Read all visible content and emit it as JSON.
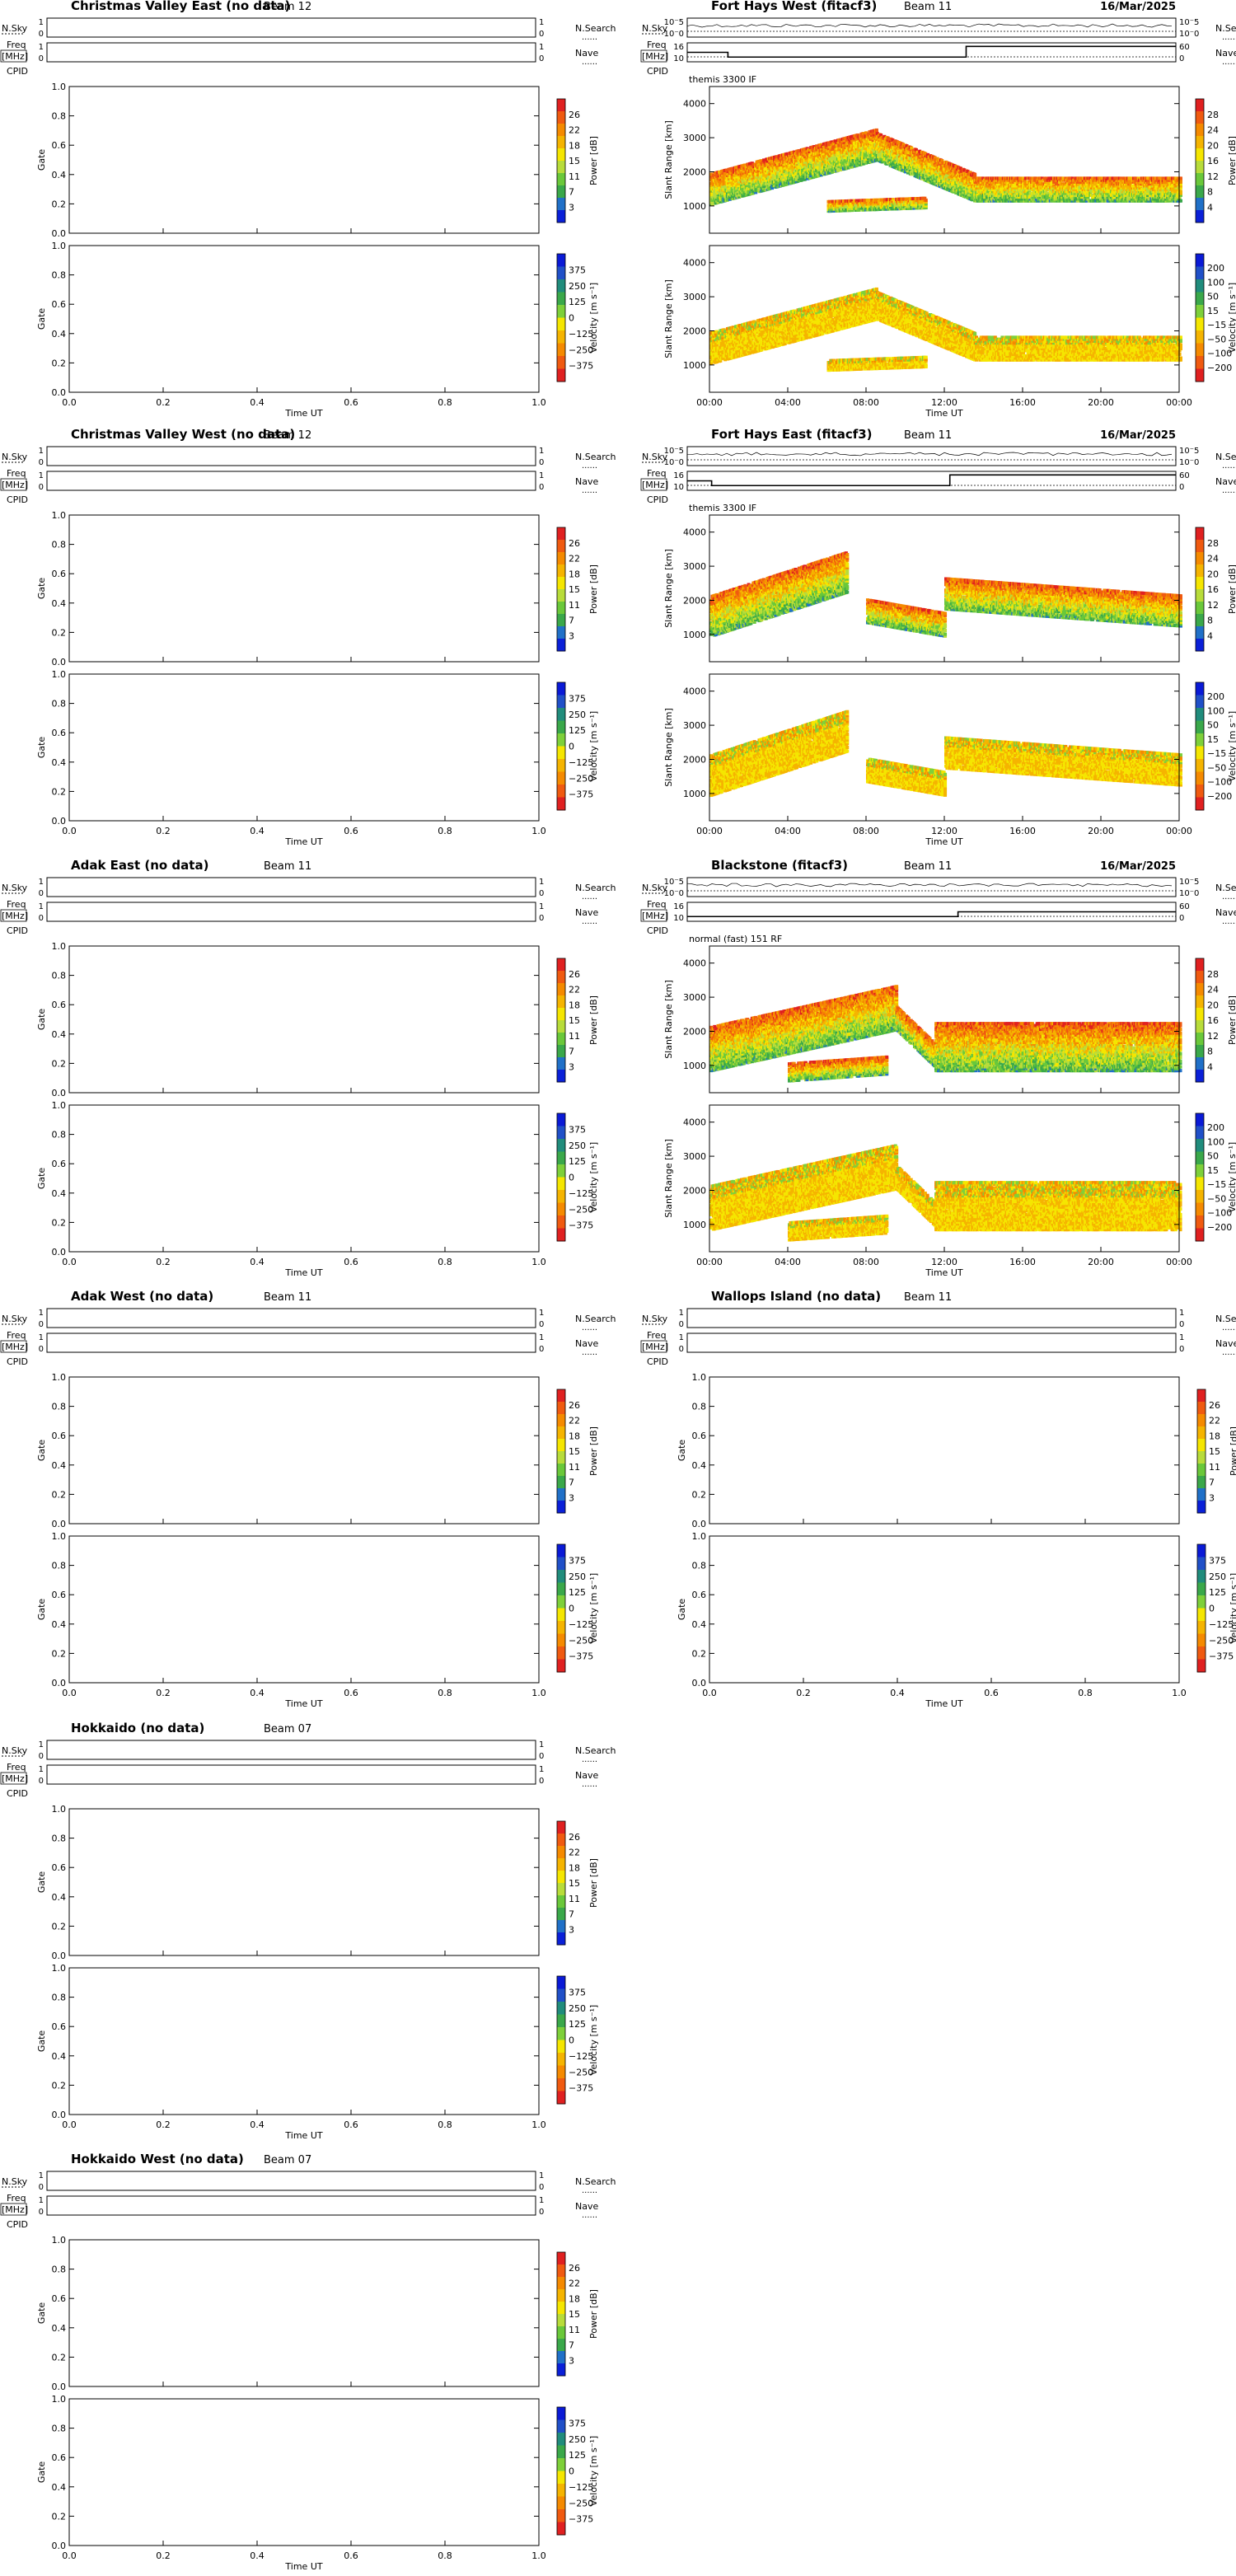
{
  "date": "16/Mar/2025",
  "labels": {
    "nsky": "N.Sky",
    "nsearch": "N.Search",
    "freq": "Freq",
    "mhz": "[MHz]",
    "nave": "Nave",
    "cpid": "CPID",
    "gate": "Gate",
    "slant_range": "Slant Range [km]",
    "time_ut": "Time UT",
    "power": "Power [dB]",
    "velocity": "Velocity [m s⁻¹]",
    "dots": "......",
    "noise_hi": "10⁻5",
    "noise_lo": "10⁻0",
    "freq_hi": "16",
    "freq_lo": "10",
    "nave_hi": "60",
    "nave_lo": "0",
    "one": "1",
    "zero": "0"
  },
  "scales": {
    "nodata_power_ticks": [
      "26",
      "22",
      "18",
      "15",
      "11",
      "7",
      "3"
    ],
    "nodata_velocity_ticks": [
      "375",
      "250",
      "125",
      "0",
      "-125",
      "-250",
      "-375"
    ],
    "data_power_ticks": [
      "28",
      "24",
      "20",
      "16",
      "12",
      "8",
      "4"
    ],
    "data_velocity_ticks": [
      "200",
      "100",
      "50",
      "15",
      "-15",
      "-50",
      "-100",
      "-200"
    ],
    "power_colors": [
      "#e02020",
      "#f05a10",
      "#f58a00",
      "#f5b400",
      "#f5e600",
      "#b8dc3a",
      "#6ac83a",
      "#3aa84a",
      "#2070c8",
      "#0a20d8"
    ],
    "velocity_colors": [
      "#0a1ad6",
      "#2050c8",
      "#208c7c",
      "#3aa84a",
      "#7ed03a",
      "#f5e600",
      "#f5b400",
      "#f58a00",
      "#f05a10",
      "#e02020"
    ]
  },
  "chart_data": [
    {
      "type": "heatmap",
      "title": "Christmas Valley East (no data)",
      "beam": "Beam 12",
      "has_data": false,
      "xticks": [
        "0.0",
        "0.2",
        "0.4",
        "0.6",
        "0.8",
        "1.0"
      ],
      "yticks": [
        "0.0",
        "0.2",
        "0.4",
        "0.6",
        "0.8",
        "1.0"
      ],
      "xlabel": "Time UT",
      "ylabel": "Gate"
    },
    {
      "type": "heatmap",
      "title": "Fort Hays West (fitacf3)",
      "beam": "Beam 11",
      "date": "16/Mar/2025",
      "program": "themis 3300 IF",
      "has_data": true,
      "x_range_hours": [
        0,
        24
      ],
      "y_range_km": [
        200,
        4500
      ],
      "xticks": [
        "00:00",
        "04:00",
        "08:00",
        "12:00",
        "16:00",
        "20:00",
        "00:00"
      ],
      "yticks": [
        "1000",
        "2000",
        "3000",
        "4000"
      ],
      "xlabel": "Time UT",
      "ylabel": "Slant Range [km]",
      "freq_profile_mhz": [
        [
          0,
          13
        ],
        [
          2,
          13
        ],
        [
          2,
          11
        ],
        [
          13.7,
          11
        ],
        [
          13.7,
          15.5
        ],
        [
          24,
          15.5
        ]
      ]
    },
    {
      "type": "heatmap",
      "title": "Christmas Valley West (no data)",
      "beam": "Beam 12",
      "has_data": false,
      "xticks": [
        "0.0",
        "0.2",
        "0.4",
        "0.6",
        "0.8",
        "1.0"
      ],
      "yticks": [
        "0.0",
        "0.2",
        "0.4",
        "0.6",
        "0.8",
        "1.0"
      ],
      "xlabel": "Time UT",
      "ylabel": "Gate"
    },
    {
      "type": "heatmap",
      "title": "Fort Hays East (fitacf3)",
      "beam": "Beam 11",
      "date": "16/Mar/2025",
      "program": "themis 3300 IF",
      "has_data": true,
      "x_range_hours": [
        0,
        24
      ],
      "y_range_km": [
        200,
        4500
      ],
      "xticks": [
        "00:00",
        "04:00",
        "08:00",
        "12:00",
        "16:00",
        "20:00",
        "00:00"
      ],
      "yticks": [
        "1000",
        "2000",
        "3000",
        "4000"
      ],
      "xlabel": "Time UT",
      "ylabel": "Slant Range [km]",
      "freq_profile_mhz": [
        [
          0,
          13
        ],
        [
          1.2,
          13
        ],
        [
          1.2,
          11
        ],
        [
          12.9,
          11
        ],
        [
          12.9,
          15.5
        ],
        [
          24,
          15.5
        ]
      ]
    },
    {
      "type": "heatmap",
      "title": "Adak East (no data)",
      "beam": "Beam 11",
      "has_data": false,
      "xticks": [
        "0.0",
        "0.2",
        "0.4",
        "0.6",
        "0.8",
        "1.0"
      ],
      "yticks": [
        "0.0",
        "0.2",
        "0.4",
        "0.6",
        "0.8",
        "1.0"
      ],
      "xlabel": "Time UT",
      "ylabel": "Gate"
    },
    {
      "type": "heatmap",
      "title": "Blackstone (fitacf3)",
      "beam": "Beam 11",
      "date": "16/Mar/2025",
      "program": "normal (fast) 151 RF",
      "has_data": true,
      "x_range_hours": [
        0,
        24
      ],
      "y_range_km": [
        200,
        4500
      ],
      "xticks": [
        "00:00",
        "04:00",
        "08:00",
        "12:00",
        "16:00",
        "20:00",
        "00:00"
      ],
      "yticks": [
        "1000",
        "2000",
        "3000",
        "4000"
      ],
      "xlabel": "Time UT",
      "ylabel": "Slant Range [km]",
      "freq_profile_mhz": [
        [
          0,
          11
        ],
        [
          13.3,
          11
        ],
        [
          13.3,
          13
        ],
        [
          24,
          13
        ]
      ]
    },
    {
      "type": "heatmap",
      "title": "Adak West (no data)",
      "beam": "Beam 11",
      "has_data": false,
      "xticks": [
        "0.0",
        "0.2",
        "0.4",
        "0.6",
        "0.8",
        "1.0"
      ],
      "yticks": [
        "0.0",
        "0.2",
        "0.4",
        "0.6",
        "0.8",
        "1.0"
      ],
      "xlabel": "Time UT",
      "ylabel": "Gate"
    },
    {
      "type": "heatmap",
      "title": "Wallops Island (no data)",
      "beam": "Beam 11",
      "has_data": false,
      "xticks": [
        "0.0",
        "0.2",
        "0.4",
        "0.6",
        "0.8",
        "1.0"
      ],
      "yticks": [
        "0.0",
        "0.2",
        "0.4",
        "0.6",
        "0.8",
        "1.0"
      ],
      "xlabel": "Time UT",
      "ylabel": "Gate"
    },
    {
      "type": "heatmap",
      "title": "Hokkaido (no data)",
      "beam": "Beam 07",
      "has_data": false,
      "xticks": [
        "0.0",
        "0.2",
        "0.4",
        "0.6",
        "0.8",
        "1.0"
      ],
      "yticks": [
        "0.0",
        "0.2",
        "0.4",
        "0.6",
        "0.8",
        "1.0"
      ],
      "xlabel": "Time UT",
      "ylabel": "Gate"
    },
    {
      "type": "heatmap",
      "title": "Hokkaido West (no data)",
      "beam": "Beam 07",
      "has_data": false,
      "xticks": [
        "0.0",
        "0.2",
        "0.4",
        "0.6",
        "0.8",
        "1.0"
      ],
      "yticks": [
        "0.0",
        "0.2",
        "0.4",
        "0.6",
        "0.8",
        "1.0"
      ],
      "xlabel": "Time UT",
      "ylabel": "Gate"
    }
  ]
}
